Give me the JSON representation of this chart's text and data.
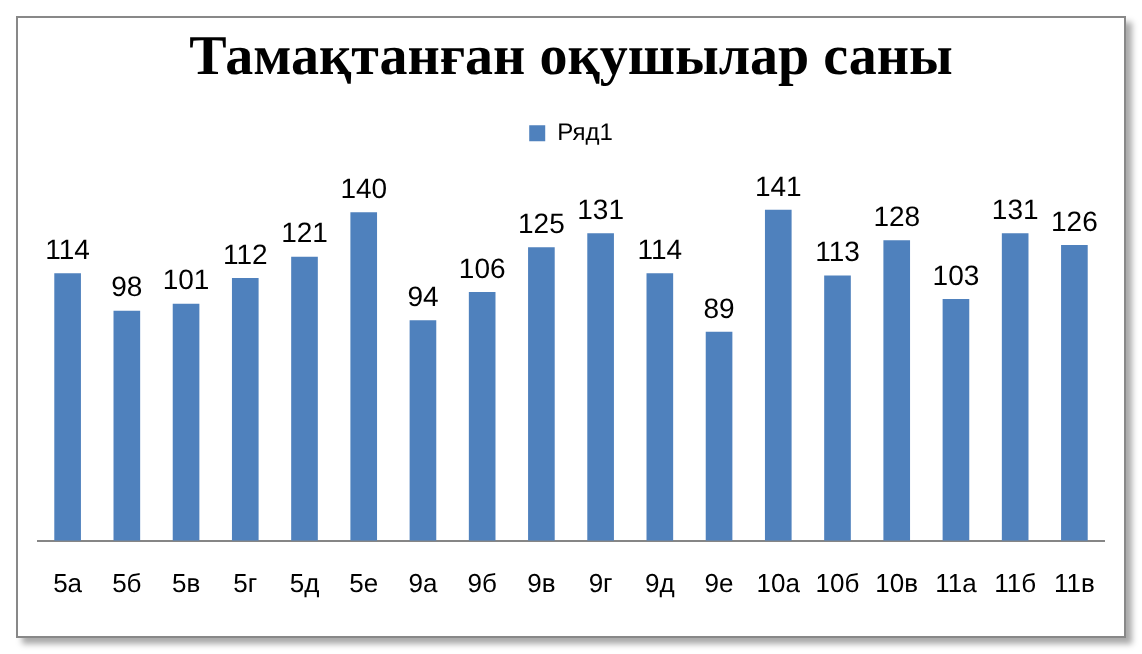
{
  "chart_data": {
    "type": "bar",
    "title": "Тамақтанған оқушылар саны",
    "categories": [
      "5а",
      "5б",
      "5в",
      "5г",
      "5д",
      "5е",
      "9а",
      "9б",
      "9в",
      "9г",
      "9д",
      "9е",
      "10а",
      "10б",
      "10в",
      "11а",
      "11б",
      "11в"
    ],
    "series": [
      {
        "name": "Ряд1",
        "color": "#4f81bd",
        "values": [
          114,
          98,
          101,
          112,
          121,
          140,
          94,
          106,
          125,
          131,
          114,
          89,
          141,
          113,
          128,
          103,
          131,
          126
        ]
      }
    ],
    "data_labels": true,
    "legend": "top",
    "grid": false,
    "tick_labels": "x"
  }
}
